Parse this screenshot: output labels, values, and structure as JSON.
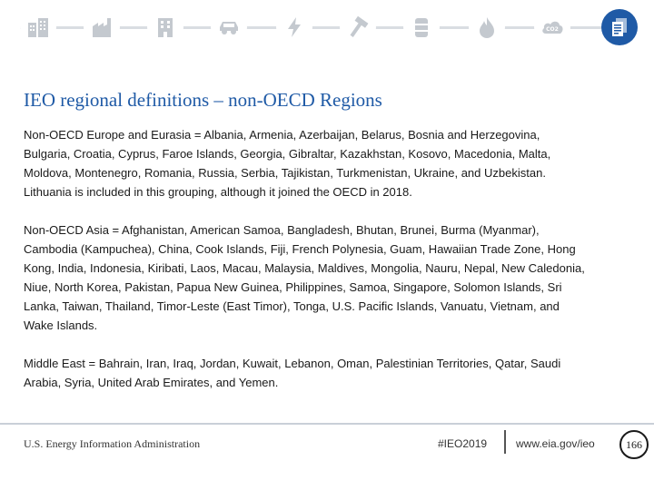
{
  "nav_icons": [
    {
      "name": "buildings-icon"
    },
    {
      "name": "factory-icon"
    },
    {
      "name": "office-building-icon"
    },
    {
      "name": "car-icon"
    },
    {
      "name": "lightning-icon"
    },
    {
      "name": "hammer-icon"
    },
    {
      "name": "oil-barrel-icon"
    },
    {
      "name": "flame-icon"
    },
    {
      "name": "co2-icon"
    },
    {
      "name": "documents-icon",
      "active": true
    }
  ],
  "colors": {
    "accent": "#1f5aa6",
    "icon_gray": "#c4c9cf",
    "rule": "#c9d0d8"
  },
  "slide": {
    "title": "IEO regional definitions – non-OECD Regions",
    "paragraphs": [
      [
        "Non-OECD Europe and Eurasia = Albania, Armenia, Azerbaijan, Belarus, Bosnia and Herzegovina,",
        "Bulgaria, Croatia, Cyprus, Faroe Islands, Georgia, Gibraltar, Kazakhstan, Kosovo, Macedonia, Malta,",
        "Moldova, Montenegro, Romania, Russia, Serbia, Tajikistan, Turkmenistan, Ukraine, and Uzbekistan.",
        "Lithuania is included in this grouping, although it joined the OECD in 2018."
      ],
      [
        "Non-OECD Asia = Afghanistan, American Samoa, Bangladesh, Bhutan, Brunei, Burma (Myanmar),",
        "Cambodia (Kampuchea), China, Cook Islands, Fiji, French Polynesia, Guam, Hawaiian Trade Zone, Hong",
        "Kong, India, Indonesia, Kiribati, Laos, Macau, Malaysia, Maldives, Mongolia, Nauru, Nepal, New Caledonia,",
        "Niue, North Korea, Pakistan, Papua New Guinea, Philippines, Samoa, Singapore, Solomon Islands, Sri",
        "Lanka, Taiwan, Thailand, Timor-Leste (East Timor), Tonga, U.S. Pacific Islands, Vanuatu, Vietnam, and",
        "Wake Islands."
      ],
      [
        "Middle East = Bahrain, Iran, Iraq, Jordan, Kuwait, Lebanon, Oman, Palestinian Territories, Qatar, Saudi",
        "Arabia, Syria, United Arab Emirates, and Yemen."
      ]
    ]
  },
  "footer": {
    "org": "U.S. Energy Information Administration",
    "hashtag": "#IEO2019",
    "url": "www.eia.gov/ieo",
    "page": "166"
  }
}
